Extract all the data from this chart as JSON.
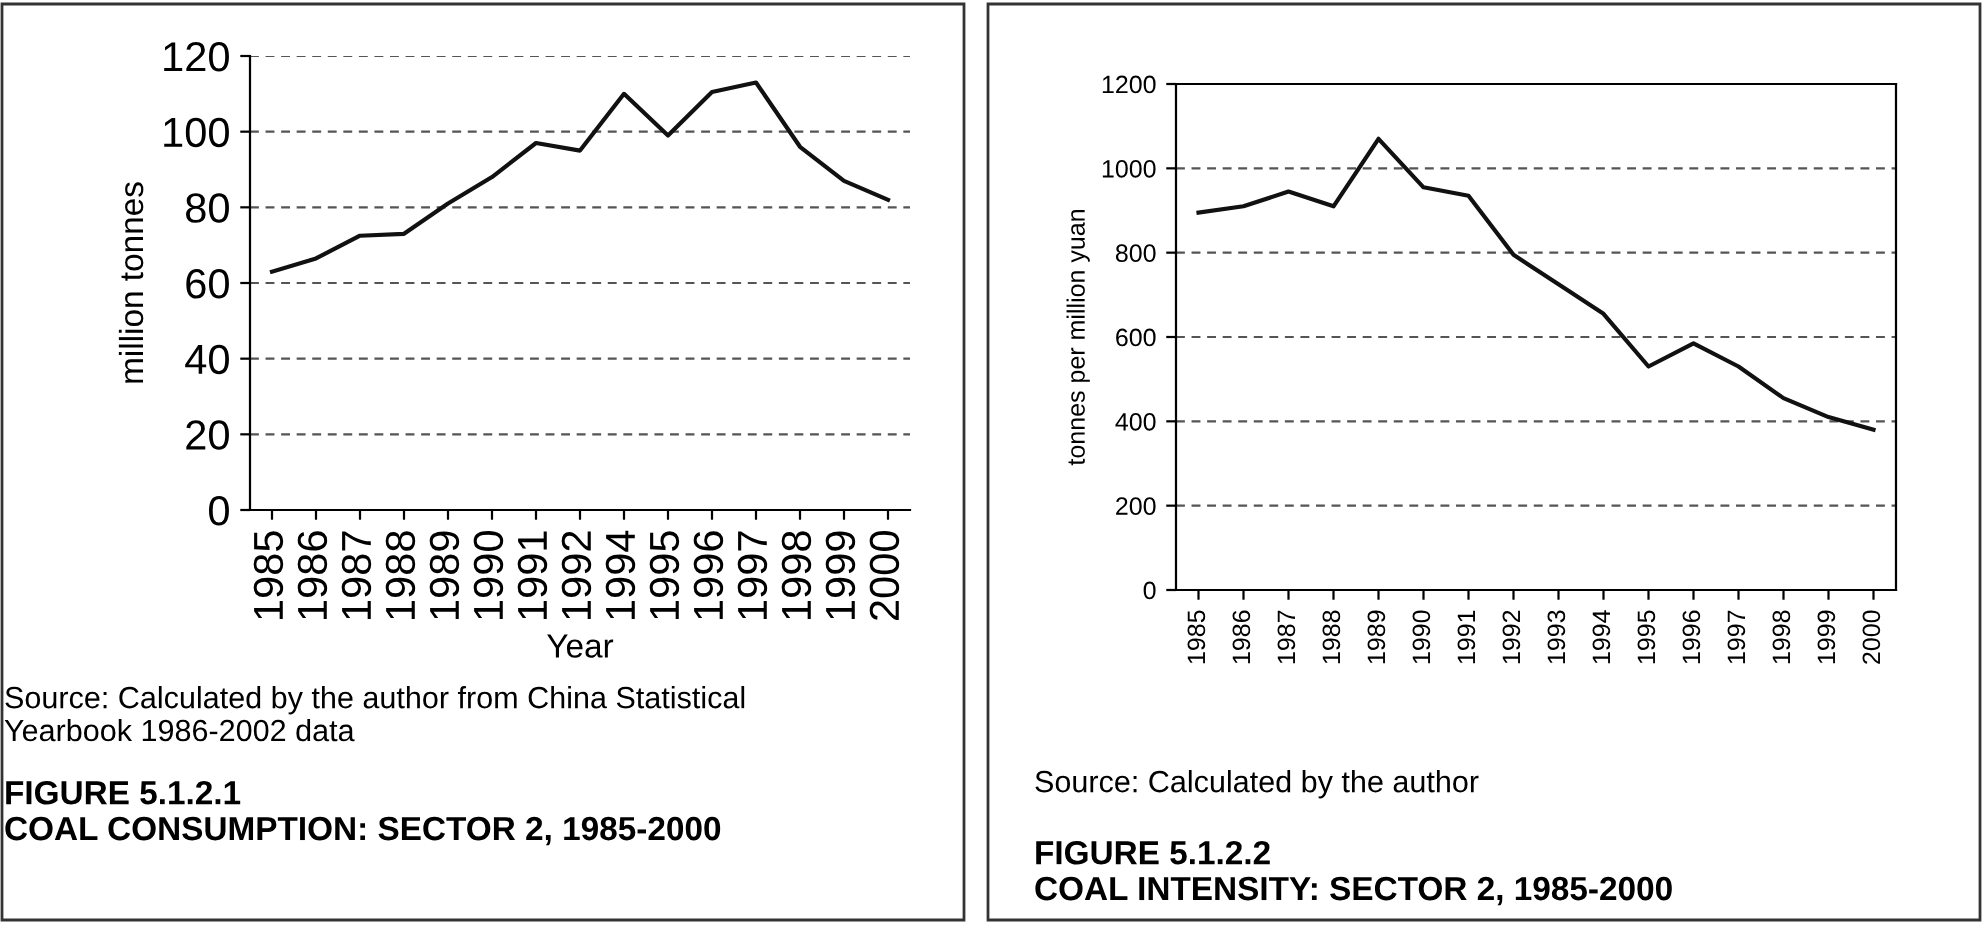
{
  "chart_data": [
    {
      "type": "line",
      "title": "FIGURE 5.1.2.1\nCOAL CONSUMPTION: SECTOR 2, 1985-2000",
      "xlabel": "Year",
      "ylabel": "million tonnes",
      "categories": [
        "1985",
        "1986",
        "1987",
        "1988",
        "1989",
        "1990",
        "1991",
        "1992",
        "1994",
        "1995",
        "1996",
        "1997",
        "1998",
        "1999",
        "2000"
      ],
      "series": [
        {
          "color": "#111111",
          "values": [
            63,
            66.5,
            72.5,
            73,
            81,
            88,
            97,
            95,
            110,
            99,
            110.5,
            113,
            96,
            87,
            82
          ]
        }
      ],
      "ylim": [
        0,
        120
      ],
      "yticks": [
        0,
        20,
        40,
        60,
        80,
        100,
        120
      ],
      "grid": "y",
      "line_style": "solid",
      "annotations": [
        "Source: Calculated by the author from China Statistical\nYearbook 1986-2002 data"
      ]
    },
    {
      "type": "line",
      "title": "FIGURE 5.1.2.2\nCOAL INTENSITY: SECTOR 2, 1985-2000",
      "ylabel": "tonnes per million yuan",
      "categories": [
        "1985",
        "1986",
        "1987",
        "1988",
        "1989",
        "1990",
        "1991",
        "1992",
        "1993",
        "1994",
        "1995",
        "1996",
        "1997",
        "1998",
        "1999",
        "2000"
      ],
      "series": [
        {
          "color": "#111111",
          "values": [
            895,
            910,
            945,
            910,
            1070,
            955,
            935,
            795,
            725,
            655,
            530,
            585,
            530,
            455,
            410,
            380
          ]
        }
      ],
      "ylim": [
        0,
        1200
      ],
      "yticks": [
        0,
        200,
        400,
        600,
        800,
        1000,
        1200
      ],
      "grid": "y",
      "line_style": "solid",
      "annotations": [
        "Source: Calculated by the author"
      ]
    }
  ]
}
